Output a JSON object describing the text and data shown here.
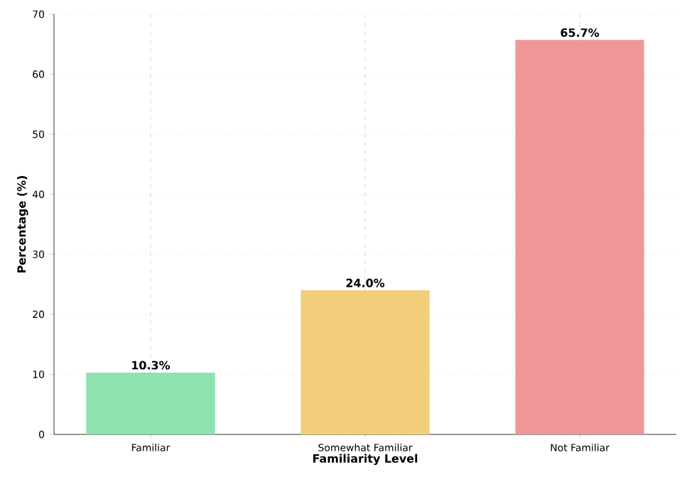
{
  "chart_data": {
    "type": "bar",
    "xlabel": "Familiarity Level",
    "ylabel": "Percentage (%)",
    "categories": [
      "Familiar",
      "Somewhat Familiar",
      "Not Familiar"
    ],
    "values": [
      10.3,
      24.0,
      65.7
    ],
    "colors": [
      "#8de2ad",
      "#f2cd7a",
      "#ef9797"
    ],
    "value_labels": [
      "10.3%",
      "24.0%",
      "65.7%"
    ],
    "ylim": [
      0,
      70
    ],
    "yticks": [
      0,
      10,
      20,
      30,
      40,
      50,
      60,
      70
    ],
    "grid": true
  }
}
